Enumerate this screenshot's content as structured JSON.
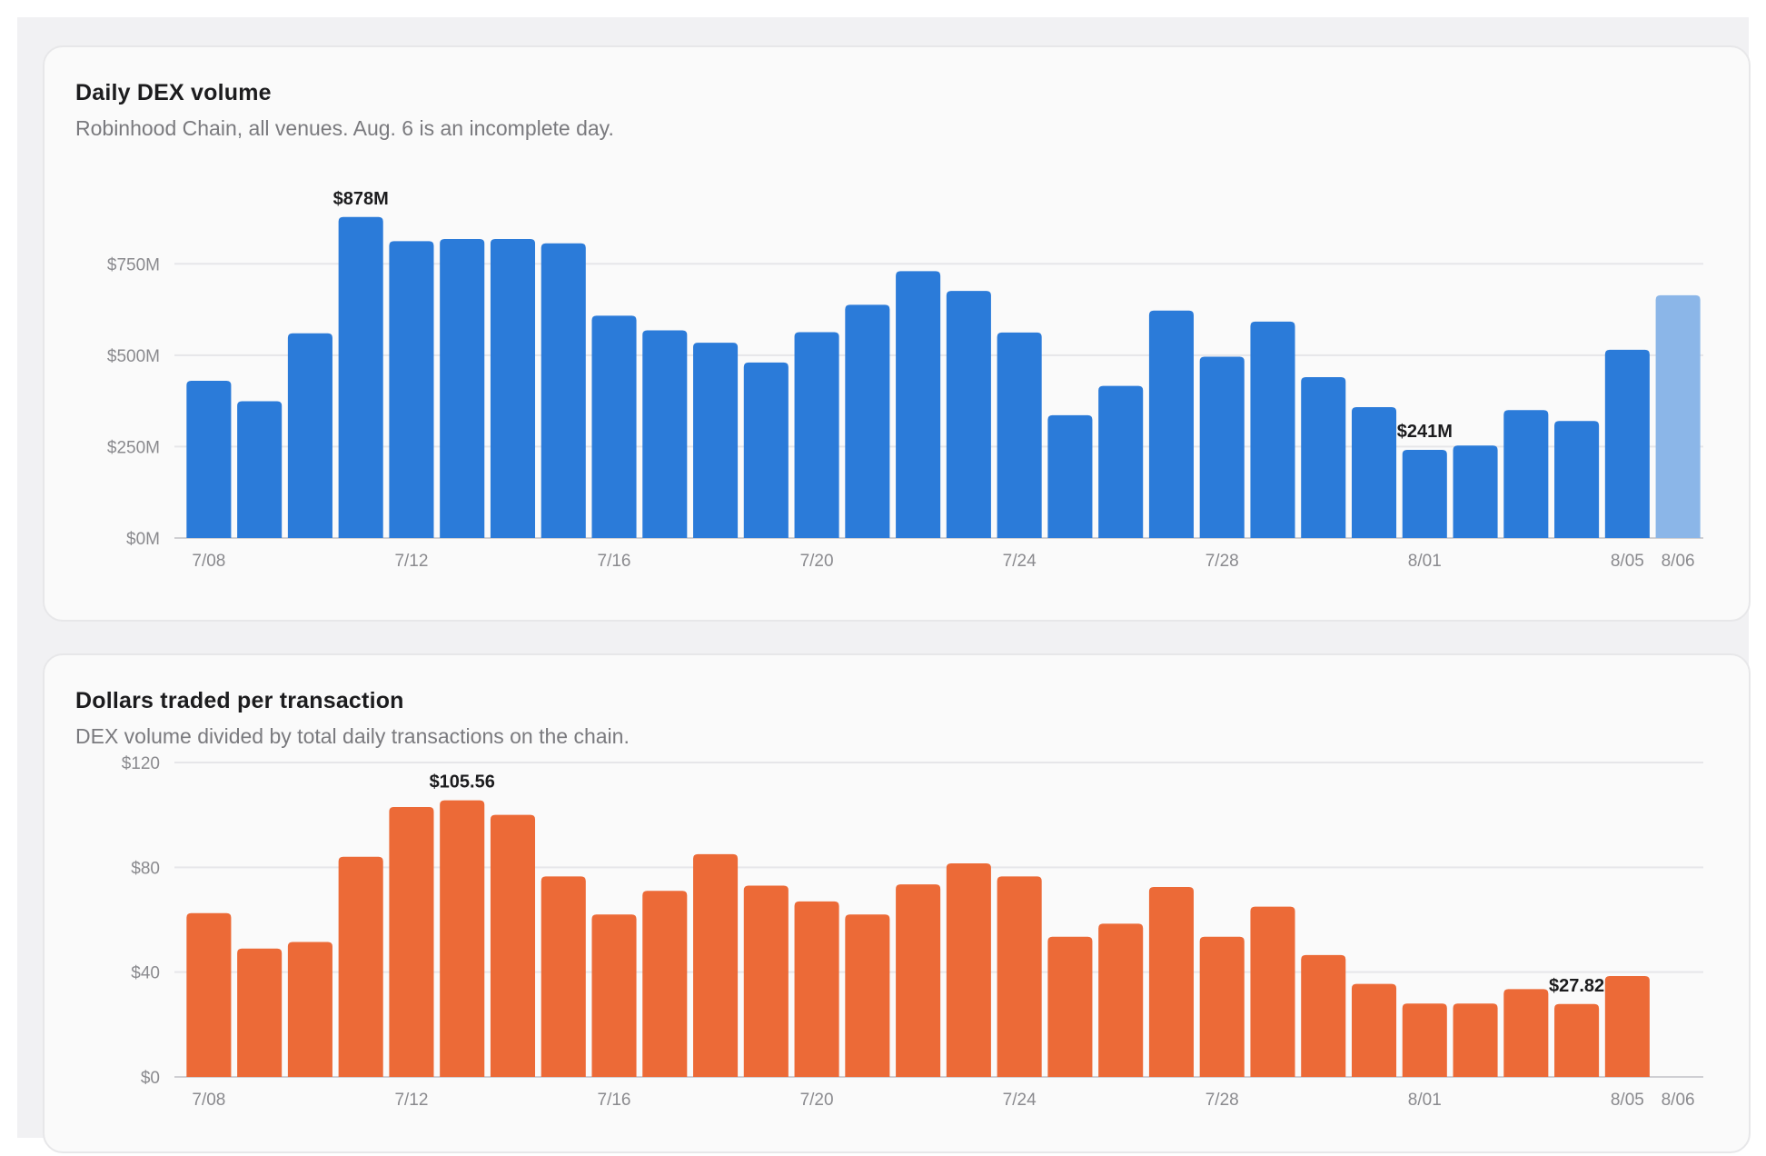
{
  "panels": [
    {
      "title": "Daily DEX volume",
      "subtitle": "Robinhood Chain, all venues. Aug. 6 is an incomplete day."
    },
    {
      "title": "Dollars traded per transaction",
      "subtitle": "DEX volume divided by total daily transactions on the chain."
    }
  ],
  "colors": {
    "volume_bar": "#2b7bd9",
    "volume_bar_incomplete": "#8bb6e8",
    "per_tx_bar": "#ec6a37",
    "grid": "#e6e6e9",
    "axis_text": "#8a8a8e",
    "annotation_text": "#1c1c1e"
  },
  "chart_data": [
    {
      "type": "bar",
      "title": "Daily DEX volume",
      "subtitle": "Robinhood Chain, all venues. Aug. 6 is an incomplete day.",
      "categories": [
        "7/08",
        "7/09",
        "7/10",
        "7/11",
        "7/12",
        "7/13",
        "7/14",
        "7/15",
        "7/16",
        "7/17",
        "7/18",
        "7/19",
        "7/20",
        "7/21",
        "7/22",
        "7/23",
        "7/24",
        "7/25",
        "7/26",
        "7/27",
        "7/28",
        "7/29",
        "7/30",
        "7/31",
        "8/01",
        "8/02",
        "8/03",
        "8/04",
        "8/05",
        "8/06"
      ],
      "values": [
        430,
        374,
        560,
        878,
        812,
        818,
        818,
        806,
        608,
        568,
        534,
        480,
        563,
        638,
        730,
        676,
        562,
        336,
        416,
        622,
        496,
        592,
        440,
        358,
        241,
        253,
        350,
        320,
        515,
        664
      ],
      "incomplete": [
        "8/06"
      ],
      "unit": "$M",
      "ylim": [
        0,
        880
      ],
      "yticks": [
        0,
        250,
        500,
        750
      ],
      "ytick_labels": [
        "$0M",
        "$250M",
        "$500M",
        "$750M"
      ],
      "xtick_labels": [
        "7/08",
        "7/12",
        "7/16",
        "7/20",
        "7/24",
        "7/28",
        "8/01",
        "8/05",
        "8/06"
      ],
      "annotations": [
        {
          "category": "7/11",
          "text": "$878M"
        },
        {
          "category": "8/01",
          "text": "$241M"
        }
      ],
      "grid": true,
      "legend": "none"
    },
    {
      "type": "bar",
      "title": "Dollars traded per transaction",
      "subtitle": "DEX volume divided by total daily transactions on the chain.",
      "categories": [
        "7/08",
        "7/09",
        "7/10",
        "7/11",
        "7/12",
        "7/13",
        "7/14",
        "7/15",
        "7/16",
        "7/17",
        "7/18",
        "7/19",
        "7/20",
        "7/21",
        "7/22",
        "7/23",
        "7/24",
        "7/25",
        "7/26",
        "7/27",
        "7/28",
        "7/29",
        "7/30",
        "7/31",
        "8/01",
        "8/02",
        "8/03",
        "8/04",
        "8/05",
        "8/06"
      ],
      "values": [
        62.5,
        49,
        51.5,
        84,
        103,
        105.56,
        100,
        76.5,
        62,
        71,
        85,
        73,
        67,
        62,
        73.5,
        81.5,
        76.5,
        53.5,
        58.5,
        72.5,
        53.5,
        65,
        46.5,
        35.5,
        28,
        28,
        33.5,
        27.82,
        38.5,
        null
      ],
      "unit": "$",
      "ylim": [
        0,
        120
      ],
      "yticks": [
        0,
        40,
        80,
        120
      ],
      "ytick_labels": [
        "$0",
        "$40",
        "$80",
        "$120"
      ],
      "xtick_labels": [
        "7/08",
        "7/12",
        "7/16",
        "7/20",
        "7/24",
        "7/28",
        "8/01",
        "8/05",
        "8/06"
      ],
      "annotations": [
        {
          "category": "7/13",
          "text": "$105.56"
        },
        {
          "category": "8/04",
          "text": "$27.82"
        }
      ],
      "grid": true,
      "legend": "none"
    }
  ]
}
